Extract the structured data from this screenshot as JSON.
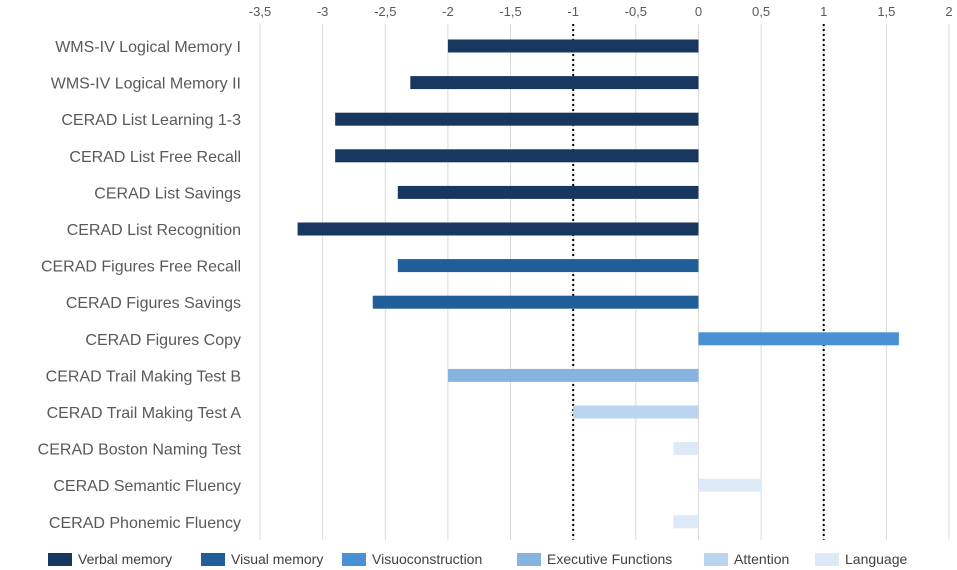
{
  "chart_data": {
    "type": "bar",
    "orientation": "horizontal",
    "xlim": [
      -3.5,
      2
    ],
    "x_ticks": [
      "-3,5",
      "-3",
      "-2,5",
      "-2",
      "-1,5",
      "-1",
      "-0,5",
      "0",
      "0,5",
      "1",
      "1,5",
      "2"
    ],
    "x_tick_values": [
      -3.5,
      -3,
      -2.5,
      -2,
      -1.5,
      -1,
      -0.5,
      0,
      0.5,
      1,
      1.5,
      2
    ],
    "reference_lines": [
      -1,
      1
    ],
    "grid": true,
    "legend_position": "bottom",
    "categories": [
      "WMS-IV Logical Memory I",
      "WMS-IV Logical Memory II",
      "CERAD List Learning 1-3",
      "CERAD List Free Recall",
      "CERAD List Savings",
      "CERAD List Recognition",
      "CERAD Figures Free Recall",
      "CERAD Figures Savings",
      "CERAD Figures Copy",
      "CERAD Trail Making Test B",
      "CERAD Trail Making Test A",
      "CERAD Boston Naming Test",
      "CERAD Semantic Fluency",
      "CERAD Phonemic Fluency"
    ],
    "values": [
      -2.0,
      -2.3,
      -2.9,
      -2.9,
      -2.4,
      -3.2,
      -2.4,
      -2.6,
      1.6,
      -2.0,
      -1.0,
      -0.2,
      0.5,
      -0.2
    ],
    "domains": [
      "Verbal memory",
      "Verbal memory",
      "Verbal memory",
      "Verbal memory",
      "Verbal memory",
      "Verbal memory",
      "Visual memory",
      "Visual memory",
      "Visuoconstruction",
      "Executive Functions",
      "Attention",
      "Language",
      "Language",
      "Language"
    ],
    "legend": [
      {
        "name": "Verbal memory",
        "color": "#17375e"
      },
      {
        "name": "Visual memory",
        "color": "#1f5e99"
      },
      {
        "name": "Visuoconstruction",
        "color": "#4a90d4"
      },
      {
        "name": "Executive Functions",
        "color": "#86b3e0"
      },
      {
        "name": "Attention",
        "color": "#bcd5ee"
      },
      {
        "name": "Language",
        "color": "#dde9f6"
      }
    ]
  }
}
